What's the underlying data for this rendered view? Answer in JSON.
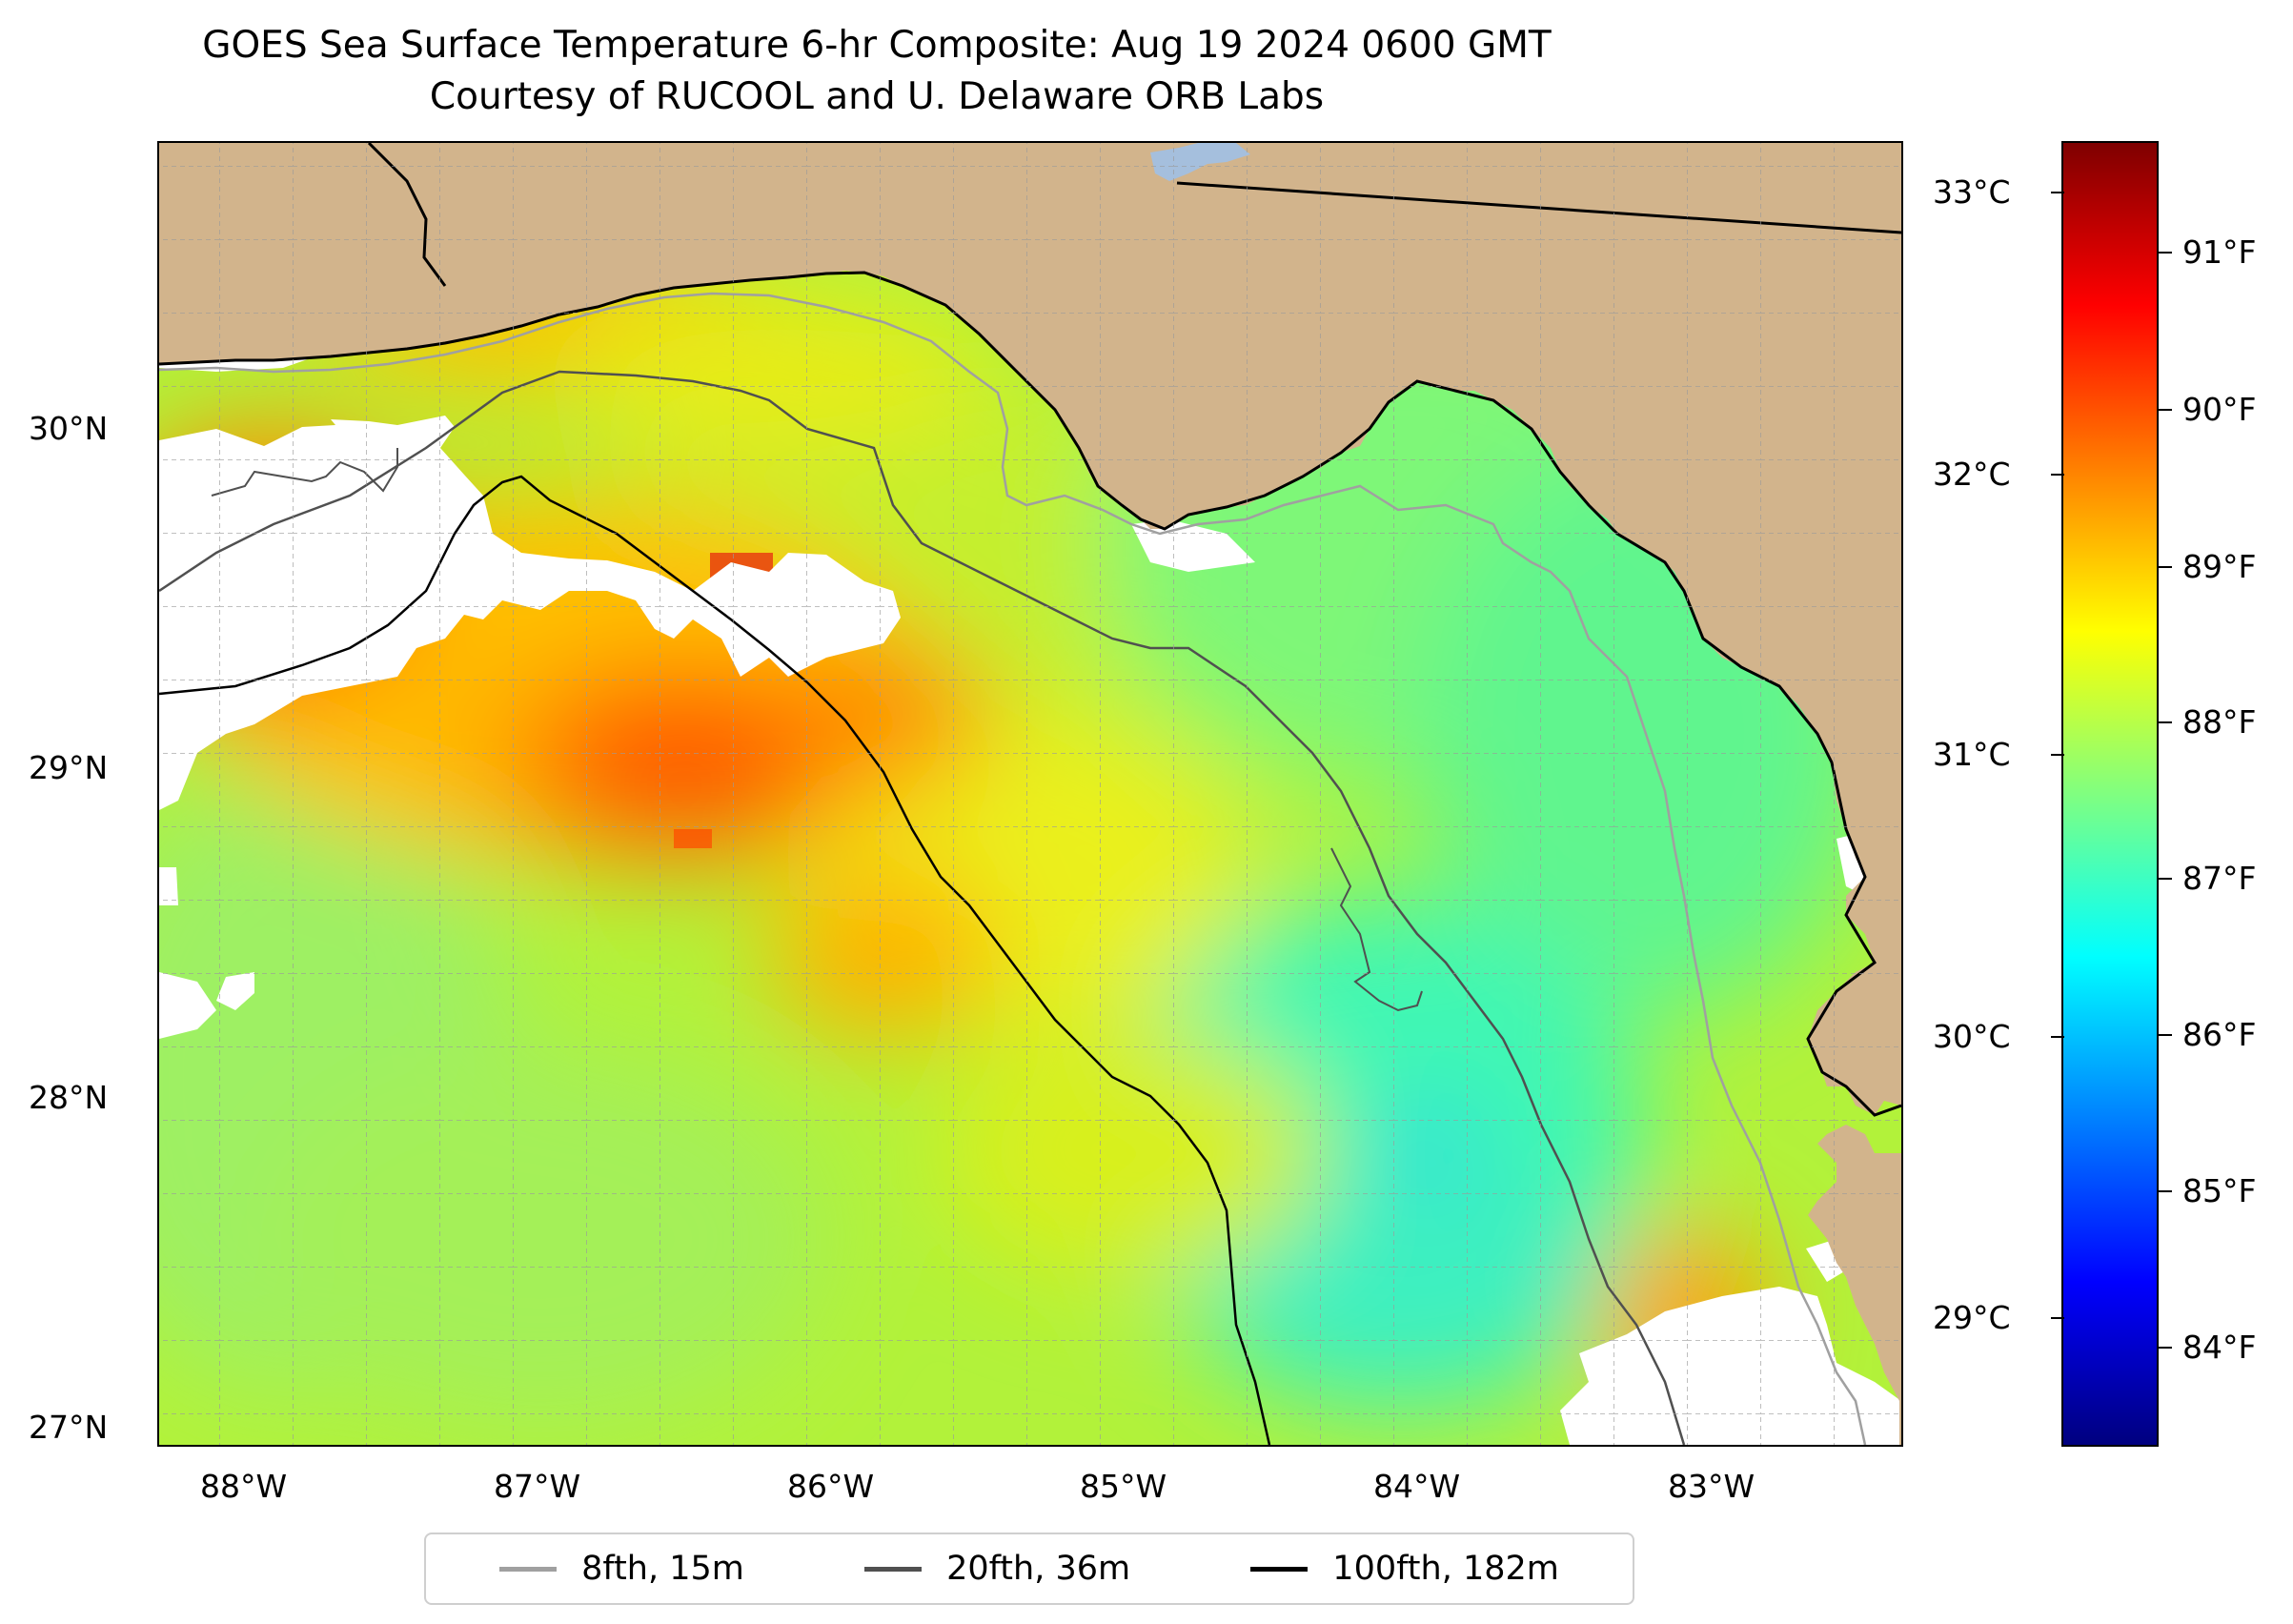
{
  "title": {
    "line1": "GOES Sea Surface Temperature 6-hr Composite: Aug 19 2024 0600 GMT",
    "line2": "Courtesy of RUCOOL and U. Delaware ORB Labs"
  },
  "colors": {
    "land": "#d2b48c",
    "lake": "#a5bfdd",
    "no_data": "#ffffff",
    "contour_8fth": "#a0a0a0",
    "contour_20fth": "#505050",
    "contour_100fth": "#000000",
    "colormap": "jet"
  },
  "map": {
    "lon_labels": [
      "88°W",
      "87°W",
      "86°W",
      "85°W",
      "84°W",
      "83°W"
    ],
    "lat_labels": [
      "30°N",
      "29°N",
      "28°N",
      "27°N"
    ],
    "grid": true
  },
  "colorbar": {
    "celsius_labels": [
      "33°C",
      "32°C",
      "31°C",
      "30°C",
      "29°C"
    ],
    "fahrenheit_labels": [
      "91°F",
      "90°F",
      "89°F",
      "88°F",
      "87°F",
      "86°F",
      "85°F",
      "84°F"
    ],
    "colormap": "jet"
  },
  "legend": {
    "items": [
      {
        "label": "8fth, 15m",
        "color": "#a0a0a0"
      },
      {
        "label": "20fth, 36m",
        "color": "#505050"
      },
      {
        "label": "100fth, 182m",
        "color": "#000000"
      }
    ]
  }
}
